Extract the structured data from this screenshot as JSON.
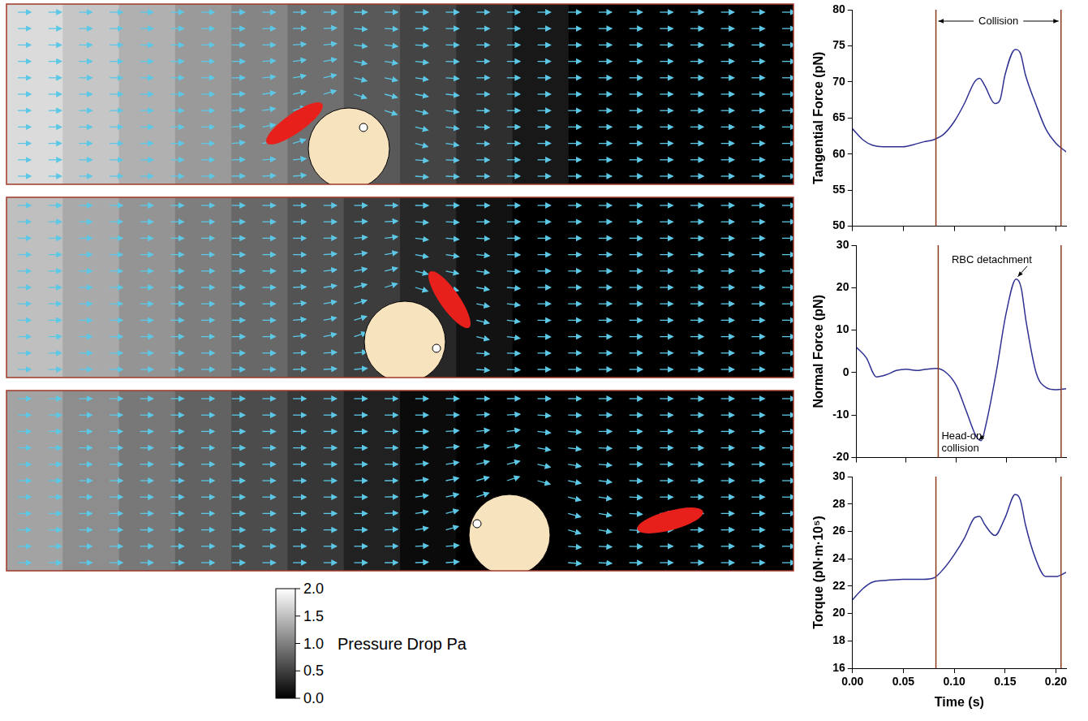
{
  "chart_data": [
    {
      "type": "line",
      "ylabel": "Tangential Force (pN)",
      "x": [
        0,
        0.01,
        0.02,
        0.03,
        0.04,
        0.05,
        0.06,
        0.07,
        0.08,
        0.09,
        0.1,
        0.11,
        0.12,
        0.125,
        0.13,
        0.14,
        0.145,
        0.15,
        0.16,
        0.165,
        0.17,
        0.18,
        0.19,
        0.2,
        0.21
      ],
      "values": [
        63.5,
        62,
        61.2,
        61,
        61,
        61,
        61.3,
        61.7,
        62,
        62.8,
        64.5,
        67,
        70,
        70.5,
        69.5,
        67,
        67.5,
        71,
        74.5,
        74,
        71,
        67,
        63.5,
        61.5,
        60.3
      ],
      "color": "#2e3192",
      "xlim": [
        0,
        0.21
      ],
      "xticks": [
        {
          "value": 0,
          "label": "0.00"
        },
        {
          "value": 0.05,
          "label": "0.05"
        },
        {
          "value": 0.1,
          "label": "0.10"
        },
        {
          "value": 0.15,
          "label": "0.15"
        },
        {
          "value": 0.2,
          "label": "0.20"
        }
      ],
      "ylim": [
        50,
        80
      ],
      "yticks": [
        50,
        55,
        60,
        65,
        70,
        75,
        80
      ],
      "tick_labels": "y",
      "grid": false,
      "vlines": [
        0.082,
        0.205
      ],
      "annotations": [
        {
          "text": "Collision"
        }
      ]
    },
    {
      "type": "line",
      "ylabel": "Normal Force (pN)",
      "x": [
        0,
        0.01,
        0.02,
        0.03,
        0.04,
        0.05,
        0.06,
        0.07,
        0.08,
        0.09,
        0.1,
        0.11,
        0.12,
        0.125,
        0.13,
        0.14,
        0.15,
        0.16,
        0.165,
        0.17,
        0.18,
        0.19,
        0.2,
        0.21
      ],
      "values": [
        6,
        3.5,
        -1,
        -0.5,
        0.5,
        0.8,
        0.5,
        0.8,
        1,
        0,
        -3,
        -9,
        -15,
        -16,
        -12,
        0,
        14,
        22,
        20,
        12,
        0,
        -3.5,
        -4,
        -3.8
      ],
      "color": "#2e3192",
      "xlim": [
        0,
        0.21
      ],
      "xticks": [
        {
          "value": 0,
          "label": "0.00"
        },
        {
          "value": 0.05,
          "label": "0.05"
        },
        {
          "value": 0.1,
          "label": "0.10"
        },
        {
          "value": 0.15,
          "label": "0.15"
        },
        {
          "value": 0.2,
          "label": "0.20"
        }
      ],
      "ylim": [
        -20,
        30
      ],
      "yticks": [
        -20,
        -10,
        0,
        10,
        20,
        30
      ],
      "tick_labels": "y",
      "grid": false,
      "vlines": [
        0.082,
        0.205
      ],
      "annotations": [
        {
          "text": "RBC detachment",
          "x": 0.16,
          "y": 22
        },
        {
          "text": "Head-on collision",
          "x": 0.125,
          "y": -16
        }
      ]
    },
    {
      "type": "line",
      "ylabel": "Torque (pN·m·10⁵)",
      "xlabel": "Time (s)",
      "x": [
        0,
        0.01,
        0.02,
        0.03,
        0.05,
        0.07,
        0.08,
        0.09,
        0.1,
        0.11,
        0.12,
        0.125,
        0.13,
        0.14,
        0.15,
        0.16,
        0.165,
        0.17,
        0.18,
        0.19,
        0.2,
        0.21
      ],
      "values": [
        21,
        21.8,
        22.3,
        22.4,
        22.5,
        22.5,
        22.6,
        23.3,
        24.3,
        25.5,
        27,
        27.1,
        26.5,
        25.7,
        27,
        28.7,
        28.3,
        26.5,
        24,
        22.7,
        22.7,
        23
      ],
      "color": "#2e3192",
      "xlim": [
        0,
        0.21
      ],
      "xticks": [
        {
          "value": 0,
          "label": "0.00"
        },
        {
          "value": 0.05,
          "label": "0.05"
        },
        {
          "value": 0.1,
          "label": "0.10"
        },
        {
          "value": 0.15,
          "label": "0.15"
        },
        {
          "value": 0.2,
          "label": "0.20"
        }
      ],
      "ylim": [
        16,
        30
      ],
      "yticks": [
        16,
        18,
        20,
        22,
        24,
        26,
        28,
        30
      ],
      "grid": false,
      "vlines": [
        0.082,
        0.205
      ]
    }
  ],
  "colorbar": {
    "label": "Pressure Drop Pa",
    "range": [
      0,
      2
    ],
    "ticks": [
      {
        "value": 0,
        "label": "0.0"
      },
      {
        "value": 0.5,
        "label": "0.5"
      },
      {
        "value": 1,
        "label": "1.0"
      },
      {
        "value": 1.5,
        "label": "1.5"
      },
      {
        "value": 2,
        "label": "2.0"
      }
    ]
  }
}
